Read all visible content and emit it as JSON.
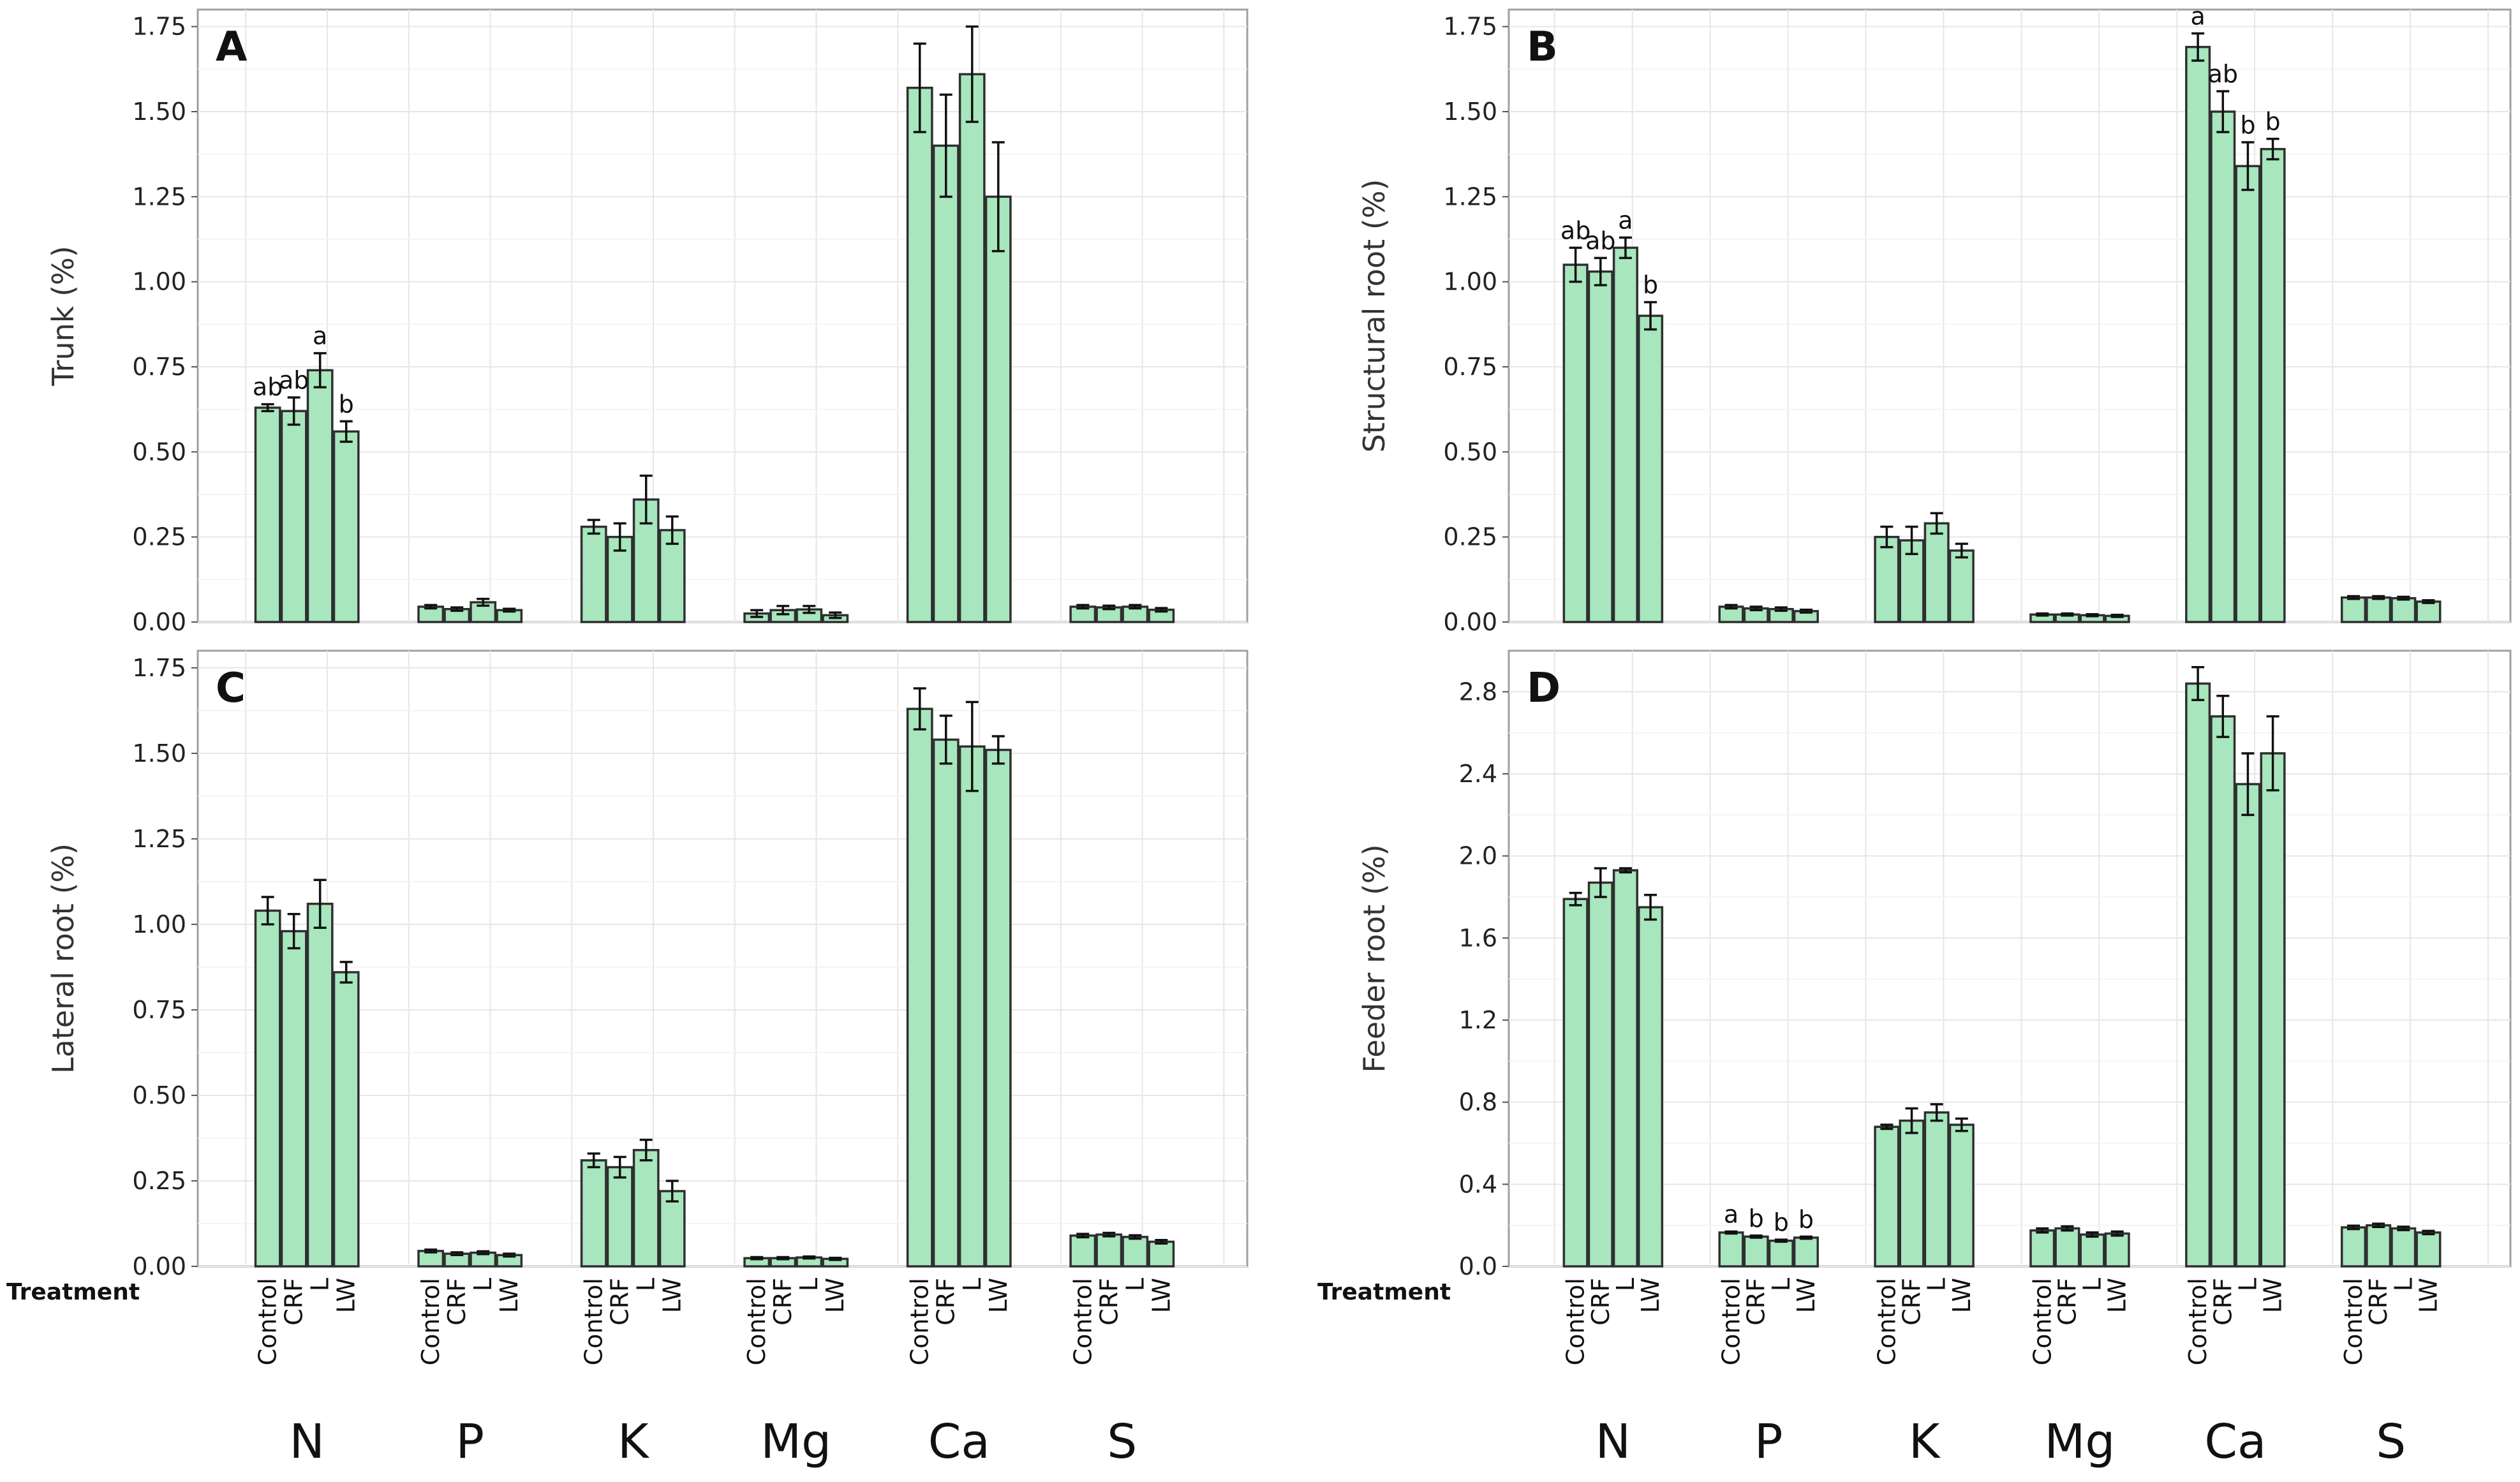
{
  "figure": {
    "treatment_label": "Treatment",
    "treatments": [
      "Control",
      "CRF",
      "L",
      "LW"
    ],
    "nutrients": [
      "N",
      "P",
      "K",
      "Mg",
      "Ca",
      "S"
    ]
  },
  "colors": {
    "bar_fill": "#a8e6be",
    "bar_stroke": "#2f2f2f",
    "grid": "#e6e6e6",
    "frame": "#a0a0a0"
  },
  "chart_data": [
    {
      "panel": "A",
      "type": "bar",
      "ylabel": "Trunk (%)",
      "ylim": [
        0,
        1.8
      ],
      "yticks": [
        "0.00",
        "0.25",
        "0.50",
        "0.75",
        "1.00",
        "1.25",
        "1.50",
        "1.75"
      ],
      "categories": [
        "N",
        "P",
        "K",
        "Mg",
        "Ca",
        "S"
      ],
      "series": [
        {
          "name": "Control",
          "values": [
            0.63,
            0.045,
            0.28,
            0.025,
            1.57,
            0.045
          ],
          "errors": [
            0.01,
            0.005,
            0.02,
            0.01,
            0.13,
            0.005
          ]
        },
        {
          "name": "CRF",
          "values": [
            0.62,
            0.038,
            0.25,
            0.035,
            1.4,
            0.043
          ],
          "errors": [
            0.04,
            0.005,
            0.04,
            0.012,
            0.15,
            0.005
          ]
        },
        {
          "name": "L",
          "values": [
            0.74,
            0.058,
            0.36,
            0.037,
            1.61,
            0.045
          ],
          "errors": [
            0.05,
            0.01,
            0.07,
            0.01,
            0.14,
            0.005
          ]
        },
        {
          "name": "LW",
          "values": [
            0.56,
            0.035,
            0.27,
            0.02,
            1.25,
            0.036
          ],
          "errors": [
            0.03,
            0.004,
            0.04,
            0.008,
            0.16,
            0.005
          ]
        }
      ],
      "annotations": [
        {
          "nutrient": 0,
          "treatment": 0,
          "text": "ab"
        },
        {
          "nutrient": 0,
          "treatment": 1,
          "text": "ab"
        },
        {
          "nutrient": 0,
          "treatment": 2,
          "text": "a"
        },
        {
          "nutrient": 0,
          "treatment": 3,
          "text": "b"
        }
      ]
    },
    {
      "panel": "B",
      "type": "bar",
      "ylabel": "Structural root (%)",
      "ylim": [
        0,
        1.8
      ],
      "yticks": [
        "0.00",
        "0.25",
        "0.50",
        "0.75",
        "1.00",
        "1.25",
        "1.50",
        "1.75"
      ],
      "categories": [
        "N",
        "P",
        "K",
        "Mg",
        "Ca",
        "S"
      ],
      "series": [
        {
          "name": "Control",
          "values": [
            1.05,
            0.045,
            0.25,
            0.022,
            1.69,
            0.072
          ],
          "errors": [
            0.05,
            0.005,
            0.03,
            0.003,
            0.04,
            0.004
          ]
        },
        {
          "name": "CRF",
          "values": [
            1.03,
            0.04,
            0.24,
            0.022,
            1.5,
            0.072
          ],
          "errors": [
            0.04,
            0.005,
            0.04,
            0.003,
            0.06,
            0.004
          ]
        },
        {
          "name": "L",
          "values": [
            1.1,
            0.038,
            0.29,
            0.02,
            1.34,
            0.07
          ],
          "errors": [
            0.03,
            0.005,
            0.03,
            0.003,
            0.07,
            0.004
          ]
        },
        {
          "name": "LW",
          "values": [
            0.9,
            0.032,
            0.21,
            0.018,
            1.39,
            0.06
          ],
          "errors": [
            0.04,
            0.004,
            0.02,
            0.003,
            0.03,
            0.004
          ]
        }
      ],
      "annotations": [
        {
          "nutrient": 0,
          "treatment": 0,
          "text": "ab"
        },
        {
          "nutrient": 0,
          "treatment": 1,
          "text": "ab"
        },
        {
          "nutrient": 0,
          "treatment": 2,
          "text": "a"
        },
        {
          "nutrient": 0,
          "treatment": 3,
          "text": "b"
        },
        {
          "nutrient": 4,
          "treatment": 0,
          "text": "a"
        },
        {
          "nutrient": 4,
          "treatment": 1,
          "text": "ab"
        },
        {
          "nutrient": 4,
          "treatment": 2,
          "text": "b"
        },
        {
          "nutrient": 4,
          "treatment": 3,
          "text": "b"
        }
      ]
    },
    {
      "panel": "C",
      "type": "bar",
      "ylabel": "Lateral root (%)",
      "ylim": [
        0,
        1.8
      ],
      "yticks": [
        "0.00",
        "0.25",
        "0.50",
        "0.75",
        "1.00",
        "1.25",
        "1.50",
        "1.75"
      ],
      "categories": [
        "N",
        "P",
        "K",
        "Mg",
        "Ca",
        "S"
      ],
      "series": [
        {
          "name": "Control",
          "values": [
            1.04,
            0.045,
            0.31,
            0.024,
            1.63,
            0.09
          ],
          "errors": [
            0.04,
            0.004,
            0.02,
            0.003,
            0.06,
            0.005
          ]
        },
        {
          "name": "CRF",
          "values": [
            0.98,
            0.037,
            0.29,
            0.024,
            1.54,
            0.093
          ],
          "errors": [
            0.05,
            0.004,
            0.03,
            0.003,
            0.07,
            0.005
          ]
        },
        {
          "name": "L",
          "values": [
            1.06,
            0.04,
            0.34,
            0.026,
            1.52,
            0.086
          ],
          "errors": [
            0.07,
            0.004,
            0.03,
            0.003,
            0.13,
            0.005
          ]
        },
        {
          "name": "LW",
          "values": [
            0.86,
            0.033,
            0.22,
            0.022,
            1.51,
            0.072
          ],
          "errors": [
            0.03,
            0.004,
            0.03,
            0.003,
            0.04,
            0.005
          ]
        }
      ],
      "annotations": []
    },
    {
      "panel": "D",
      "type": "bar",
      "ylabel": "Feeder root (%)",
      "ylim": [
        0,
        3.0
      ],
      "yticks": [
        "0.0",
        "0.4",
        "0.8",
        "1.2",
        "1.6",
        "2.0",
        "2.4",
        "2.8"
      ],
      "categories": [
        "N",
        "P",
        "K",
        "Mg",
        "Ca",
        "S"
      ],
      "series": [
        {
          "name": "Control",
          "values": [
            1.79,
            0.165,
            0.68,
            0.175,
            2.84,
            0.19
          ],
          "errors": [
            0.03,
            0.005,
            0.01,
            0.01,
            0.08,
            0.008
          ]
        },
        {
          "name": "CRF",
          "values": [
            1.87,
            0.145,
            0.71,
            0.185,
            2.68,
            0.2
          ],
          "errors": [
            0.07,
            0.005,
            0.06,
            0.01,
            0.1,
            0.008
          ]
        },
        {
          "name": "L",
          "values": [
            1.93,
            0.125,
            0.75,
            0.155,
            2.35,
            0.185
          ],
          "errors": [
            0.01,
            0.005,
            0.04,
            0.01,
            0.15,
            0.008
          ]
        },
        {
          "name": "LW",
          "values": [
            1.75,
            0.14,
            0.69,
            0.16,
            2.5,
            0.165
          ],
          "errors": [
            0.06,
            0.005,
            0.03,
            0.01,
            0.18,
            0.008
          ]
        }
      ],
      "annotations": [
        {
          "nutrient": 1,
          "treatment": 0,
          "text": "a"
        },
        {
          "nutrient": 1,
          "treatment": 1,
          "text": "b"
        },
        {
          "nutrient": 1,
          "treatment": 2,
          "text": "b"
        },
        {
          "nutrient": 1,
          "treatment": 3,
          "text": "b"
        }
      ]
    }
  ]
}
